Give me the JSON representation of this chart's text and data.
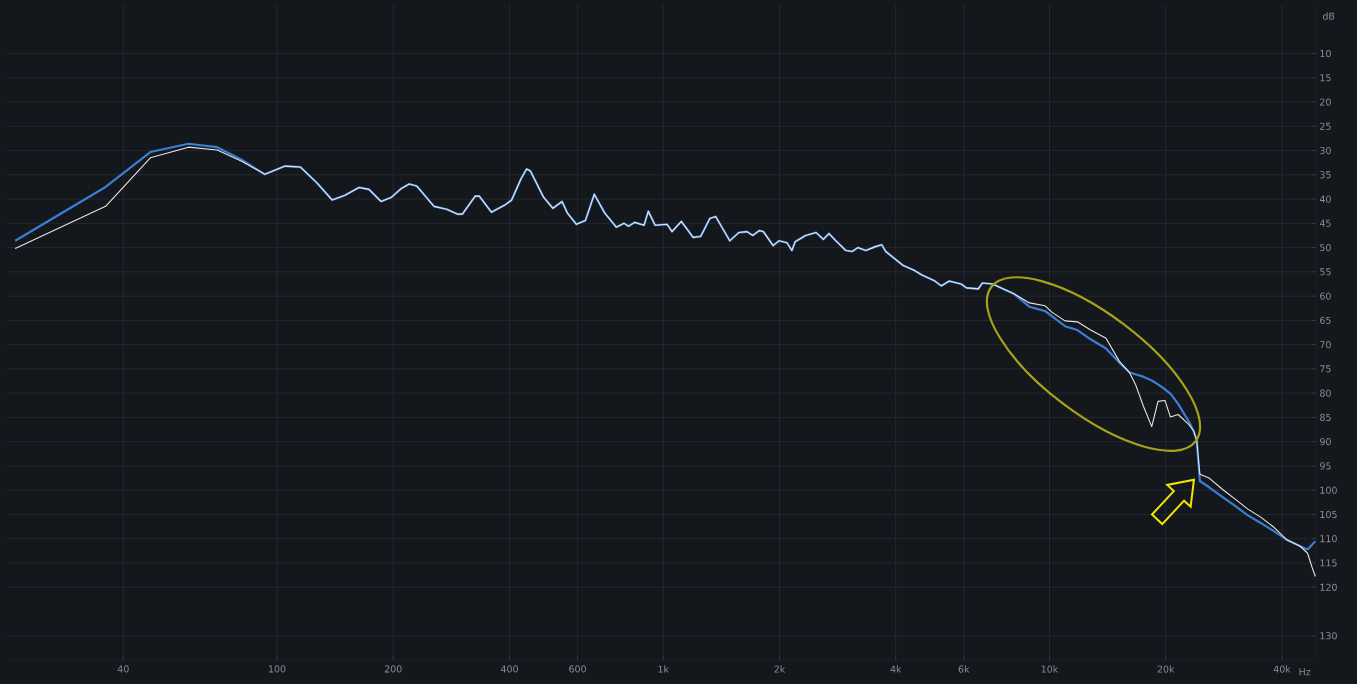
{
  "chart_data": {
    "type": "line",
    "xlabel": "Hz",
    "ylabel": "dB",
    "log": "x",
    "grid": true,
    "line_style": "solid",
    "xlim": [
      20,
      49000
    ],
    "ylim": [
      135,
      0
    ],
    "xticks": [
      40,
      100,
      200,
      400,
      600,
      {
        "value": 1000,
        "label": "1k"
      },
      {
        "value": 2000,
        "label": "2k"
      },
      {
        "value": 4000,
        "label": "4k"
      },
      {
        "value": 6000,
        "label": "6k"
      },
      {
        "value": 10000,
        "label": "10k"
      },
      {
        "value": 20000,
        "label": "20k"
      },
      {
        "value": 40000,
        "label": "40k"
      }
    ],
    "yticks": [
      10,
      15,
      20,
      25,
      30,
      35,
      40,
      45,
      50,
      55,
      60,
      65,
      70,
      75,
      80,
      85,
      90,
      95,
      100,
      105,
      110,
      115,
      120,
      130
    ],
    "series": [
      {
        "color": "#e6e6e6",
        "x": [
          21,
          36,
          47,
          59,
          70,
          81,
          93,
          105,
          115,
          127,
          139,
          150,
          163,
          173,
          186,
          198,
          210,
          220,
          230,
          255,
          275,
          293,
          302,
          326,
          334,
          359,
          391,
          405,
          429,
          443,
          453,
          490,
          518,
          547,
          565,
          596,
          629,
          663,
          706,
          756,
          792,
          813,
          843,
          892,
          915,
          953,
          1023,
          1054,
          1114,
          1195,
          1250,
          1320,
          1367,
          1487,
          1569,
          1648,
          1705,
          1773,
          1817,
          1926,
          1993,
          2091,
          2153,
          2195,
          2337,
          2488,
          2598,
          2686,
          2791,
          2970,
          3086,
          3190,
          3346,
          3543,
          3680,
          3768,
          4182,
          4447,
          4663,
          5052,
          5247,
          5500,
          5902,
          6099,
          6544,
          6700,
          7122,
          8083,
          8876,
          9746,
          10140,
          10970,
          11810,
          12780,
          14010,
          15160,
          16100,
          16700,
          17490,
          18400,
          19100,
          19910,
          20560,
          21540,
          22970,
          23620,
          24060,
          24510,
          25910,
          28030,
          30310,
          32640,
          35310,
          38190,
          41120,
          44490,
          46590,
          47900,
          48800
        ],
        "values": [
          50.2,
          41.5,
          31.5,
          29.3,
          29.9,
          32.2,
          34.9,
          33.2,
          33.4,
          36.7,
          40.2,
          39.2,
          37.6,
          38.0,
          40.5,
          39.6,
          37.8,
          36.9,
          37.3,
          41.5,
          42.1,
          43.1,
          43.1,
          39.4,
          39.4,
          42.7,
          41.1,
          40.2,
          35.7,
          33.8,
          34.2,
          39.6,
          41.9,
          40.5,
          42.9,
          45.2,
          44.4,
          39.0,
          42.9,
          45.8,
          45.0,
          45.6,
          44.8,
          45.4,
          42.5,
          45.4,
          45.2,
          46.7,
          44.6,
          47.9,
          47.7,
          44.0,
          43.6,
          48.6,
          46.9,
          46.7,
          47.5,
          46.5,
          46.7,
          49.6,
          48.6,
          49.0,
          50.6,
          48.8,
          47.5,
          46.9,
          48.3,
          47.1,
          48.5,
          50.6,
          50.8,
          50.0,
          50.6,
          49.8,
          49.4,
          50.8,
          53.7,
          54.6,
          55.6,
          56.9,
          57.9,
          56.9,
          57.5,
          58.3,
          58.5,
          57.3,
          57.5,
          59.5,
          61.4,
          62.0,
          63.3,
          65.1,
          65.3,
          67.0,
          68.7,
          73.4,
          75.7,
          78.2,
          82.6,
          86.9,
          81.7,
          81.5,
          84.9,
          84.4,
          86.5,
          87.8,
          89.8,
          96.7,
          97.5,
          99.8,
          101.9,
          103.9,
          105.6,
          107.7,
          110.2,
          111.5,
          113.0,
          116.0,
          117.8
        ]
      },
      {
        "color": "#3a7fd5",
        "x": [
          21,
          36,
          47,
          59,
          70,
          81,
          93,
          105,
          115,
          127,
          139,
          150,
          163,
          173,
          186,
          198,
          210,
          220,
          230,
          255,
          275,
          293,
          302,
          326,
          334,
          359,
          391,
          405,
          429,
          443,
          453,
          490,
          518,
          547,
          565,
          596,
          629,
          663,
          706,
          756,
          792,
          813,
          843,
          892,
          915,
          953,
          1023,
          1054,
          1114,
          1195,
          1250,
          1320,
          1367,
          1487,
          1569,
          1648,
          1705,
          1773,
          1817,
          1926,
          1993,
          2091,
          2153,
          2195,
          2337,
          2488,
          2598,
          2686,
          2791,
          2970,
          3086,
          3190,
          3346,
          3543,
          3680,
          3768,
          4182,
          4447,
          4663,
          5052,
          5247,
          5500,
          5902,
          6099,
          6544,
          6700,
          7122,
          8083,
          8876,
          9746,
          10140,
          10970,
          11810,
          12780,
          14010,
          15160,
          16100,
          16700,
          17490,
          18400,
          19100,
          19910,
          20560,
          21540,
          22970,
          23620,
          24060,
          24510,
          25910,
          28030,
          30310,
          32640,
          35310,
          38190,
          41120,
          44490,
          46590,
          47900,
          48800
        ],
        "values": [
          48.6,
          37.5,
          30.3,
          28.6,
          29.3,
          31.9,
          34.9,
          33.2,
          33.4,
          36.7,
          40.2,
          39.2,
          37.6,
          38.0,
          40.5,
          39.6,
          37.8,
          36.9,
          37.3,
          41.5,
          42.1,
          43.1,
          43.1,
          39.4,
          39.4,
          42.7,
          41.1,
          40.2,
          35.7,
          33.8,
          34.2,
          39.6,
          41.9,
          40.5,
          42.9,
          45.2,
          44.4,
          39.0,
          42.9,
          45.8,
          45.0,
          45.6,
          44.8,
          45.4,
          42.5,
          45.4,
          45.2,
          46.7,
          44.6,
          47.9,
          47.7,
          44.0,
          43.6,
          48.6,
          46.9,
          46.7,
          47.5,
          46.5,
          46.7,
          49.6,
          48.6,
          49.0,
          50.6,
          48.8,
          47.5,
          46.9,
          48.3,
          47.1,
          48.5,
          50.6,
          50.8,
          50.0,
          50.6,
          49.8,
          49.4,
          50.8,
          53.7,
          54.6,
          55.6,
          56.9,
          57.9,
          56.9,
          57.5,
          58.3,
          58.5,
          57.3,
          57.5,
          59.5,
          62.2,
          63.1,
          64.1,
          66.2,
          67.0,
          68.9,
          70.8,
          73.7,
          75.7,
          76.1,
          76.6,
          77.4,
          78.2,
          79.2,
          80.1,
          82.2,
          85.9,
          87.8,
          89.8,
          98.1,
          99.4,
          101.4,
          103.3,
          105.2,
          106.8,
          108.5,
          110.2,
          111.5,
          112.2,
          111.2,
          110.5
        ]
      }
    ]
  }
}
